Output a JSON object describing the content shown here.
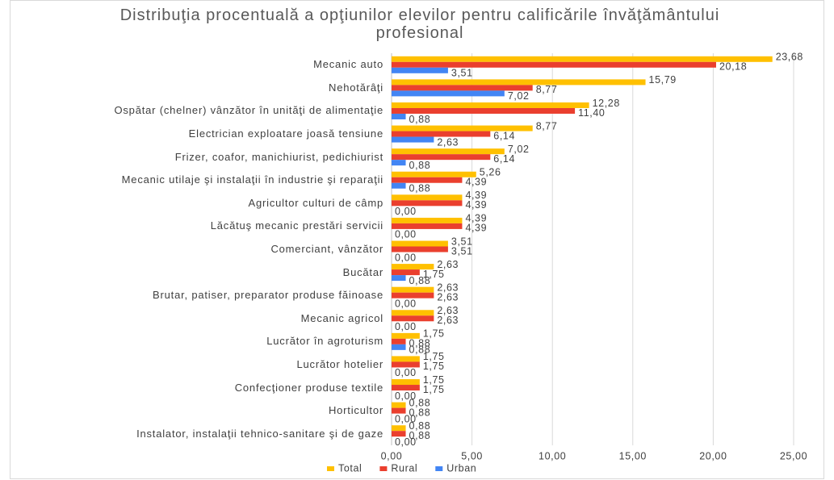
{
  "chart_data": {
    "type": "bar",
    "orientation": "horizontal",
    "title": "Distribuţia procentuală a opţiunilor elevilor pentru calificările învăţământului profesional",
    "categories": [
      "Mecanic auto",
      "Nehotărâţi",
      "Ospătar (chelner) vânzător în unităţi de alimentaţie",
      "Electrician exploatare joasă tensiune",
      "Frizer, coafor, manichiurist, pedichiurist",
      "Mecanic utilaje şi instalaţii în industrie şi reparaţii",
      "Agricultor culturi de câmp",
      "Lăcătuş mecanic prestări servicii",
      "Comerciant, vânzător",
      "Bucătar",
      "Brutar, patiser, preparator produse făinoase",
      "Mecanic agricol",
      "Lucrător în agroturism",
      "Lucrător hotelier",
      "Confecţioner produse textile",
      "Horticultor",
      "Instalator, instalaţii tehnico-sanitare şi de gaze"
    ],
    "series": [
      {
        "name": "Total",
        "color": "#ffc000",
        "values": [
          23.68,
          15.79,
          12.28,
          8.77,
          7.02,
          5.26,
          4.39,
          4.39,
          3.51,
          2.63,
          2.63,
          2.63,
          1.75,
          1.75,
          1.75,
          0.88,
          0.88
        ],
        "value_labels": [
          "23,68",
          "15,79",
          "12,28",
          "8,77",
          "7,02",
          "5,26",
          "4,39",
          "4,39",
          "3,51",
          "2,63",
          "2,63",
          "2,63",
          "1,75",
          "1,75",
          "1,75",
          "0,88",
          "0,88"
        ]
      },
      {
        "name": "Rural",
        "color": "#ea3f2e",
        "values": [
          20.18,
          8.77,
          11.4,
          6.14,
          6.14,
          4.39,
          4.39,
          4.39,
          3.51,
          1.75,
          2.63,
          2.63,
          0.88,
          1.75,
          1.75,
          0.88,
          0.88
        ],
        "value_labels": [
          "20,18",
          "8,77",
          "11,40",
          "6,14",
          "6,14",
          "4,39",
          "4,39",
          "4,39",
          "3,51",
          "1,75",
          "2,63",
          "2,63",
          "0,88",
          "1,75",
          "1,75",
          "0,88",
          "0,88"
        ]
      },
      {
        "name": "Urban",
        "color": "#4285f4",
        "values": [
          3.51,
          7.02,
          0.88,
          2.63,
          0.88,
          0.88,
          0,
          0,
          0,
          0.88,
          0,
          0,
          0.88,
          0,
          0,
          0,
          0
        ],
        "value_labels": [
          "3,51",
          "7,02",
          "0,88",
          "2,63",
          "0,88",
          "0,88",
          "0,00",
          "0,00",
          "0,00",
          "0,88",
          "0,00",
          "0,00",
          "0,88",
          "0,00",
          "0,00",
          "0,00",
          "0,00"
        ]
      }
    ],
    "xlim": [
      0,
      25
    ],
    "xticks": [
      {
        "value": 0,
        "label": "0,00"
      },
      {
        "value": 5,
        "label": "5,00"
      },
      {
        "value": 10,
        "label": "10,00"
      },
      {
        "value": 15,
        "label": "15,00"
      },
      {
        "value": 20,
        "label": "20,00"
      },
      {
        "value": 25,
        "label": "25,00"
      }
    ],
    "grid": true,
    "legend": "bottom"
  }
}
